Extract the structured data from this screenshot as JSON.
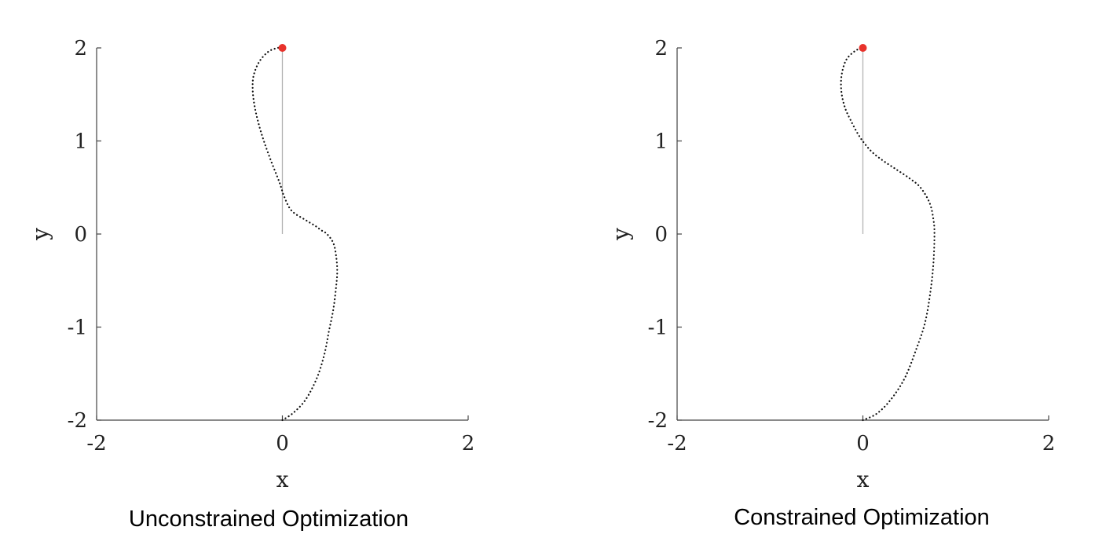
{
  "chart_data": [
    {
      "type": "line",
      "caption": "Unconstrained Optimization",
      "xlabel": "x",
      "ylabel": "y",
      "xlim": [
        -2,
        2
      ],
      "ylim": [
        -2,
        2
      ],
      "xticks": [
        "-2",
        "0",
        "2"
      ],
      "yticks": [
        "2",
        "1",
        "0",
        "-1",
        "-2"
      ],
      "grid": false,
      "reference_line": {
        "x": [
          0,
          0
        ],
        "y": [
          0,
          2
        ],
        "color": "#b3b3b3"
      },
      "marker": {
        "x": 0,
        "y": 2,
        "color": "#e8322b"
      },
      "series": [
        {
          "style": "dotted",
          "color": "#111111",
          "x": [
            0.0,
            0.12,
            0.25,
            0.37,
            0.45,
            0.5,
            0.55,
            0.58,
            0.59,
            0.58,
            0.55,
            0.48,
            0.42,
            0.35,
            0.25,
            0.1,
            0.02,
            -0.03,
            -0.12,
            -0.2,
            -0.26,
            -0.3,
            -0.32,
            -0.31,
            -0.25,
            -0.15,
            -0.05,
            0.0
          ],
          "y": [
            -2.0,
            -1.92,
            -1.78,
            -1.55,
            -1.3,
            -1.05,
            -0.8,
            -0.55,
            -0.4,
            -0.25,
            -0.1,
            0.0,
            0.04,
            0.09,
            0.15,
            0.25,
            0.4,
            0.55,
            0.78,
            1.0,
            1.2,
            1.38,
            1.55,
            1.7,
            1.85,
            1.96,
            2.0,
            2.0
          ]
        }
      ]
    },
    {
      "type": "line",
      "caption": "Constrained Optimization",
      "xlabel": "x",
      "ylabel": "y",
      "xlim": [
        -2,
        2
      ],
      "ylim": [
        -2,
        2
      ],
      "xticks": [
        "-2",
        "0",
        "2"
      ],
      "yticks": [
        "2",
        "1",
        "0",
        "-1",
        "-2"
      ],
      "grid": false,
      "reference_line": {
        "x": [
          0,
          0
        ],
        "y": [
          0,
          2
        ],
        "color": "#b3b3b3"
      },
      "marker": {
        "x": 0,
        "y": 2,
        "color": "#e8322b"
      },
      "series": [
        {
          "style": "dotted",
          "color": "#111111",
          "x": [
            0.0,
            0.15,
            0.3,
            0.45,
            0.57,
            0.67,
            0.73,
            0.76,
            0.77,
            0.76,
            0.72,
            0.62,
            0.5,
            0.35,
            0.2,
            0.1,
            0.02,
            -0.05,
            -0.12,
            -0.19,
            -0.23,
            -0.23,
            -0.18,
            -0.08,
            0.0
          ],
          "y": [
            -2.0,
            -1.93,
            -1.78,
            -1.55,
            -1.25,
            -0.95,
            -0.6,
            -0.3,
            0.0,
            0.15,
            0.33,
            0.5,
            0.6,
            0.7,
            0.8,
            0.88,
            0.97,
            1.07,
            1.2,
            1.35,
            1.52,
            1.7,
            1.87,
            1.97,
            2.0
          ]
        }
      ]
    }
  ]
}
